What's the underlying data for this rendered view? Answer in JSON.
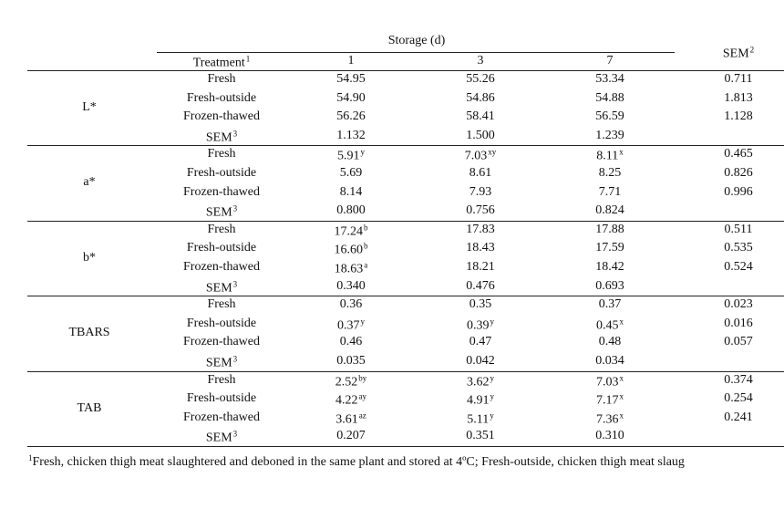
{
  "header": {
    "storage": "Storage (d)",
    "sem": {
      "text": "SEM",
      "sup": "2"
    },
    "treatment": {
      "text": "Treatment",
      "sup": "1"
    },
    "days": [
      "1",
      "3",
      "7"
    ]
  },
  "groups": [
    {
      "label": "L*",
      "rows": [
        [
          "Fresh",
          "54.95",
          "55.26",
          "53.34",
          "0.711"
        ],
        [
          "Fresh-outside",
          "54.90",
          "54.86",
          "54.88",
          "1.813"
        ],
        [
          "Frozen-thawed",
          "56.26",
          "58.41",
          "56.59",
          "1.128"
        ],
        [
          {
            "text": "SEM",
            "sup": "3"
          },
          "1.132",
          "1.500",
          "1.239"
        ]
      ]
    },
    {
      "label": "a*",
      "rows": [
        [
          "Fresh",
          {
            "text": "5.91",
            "sup": "y"
          },
          {
            "text": "7.03",
            "sup": "xy"
          },
          {
            "text": "8.11",
            "sup": "x"
          },
          "0.465"
        ],
        [
          "Fresh-outside",
          "5.69",
          "8.61",
          "8.25",
          "0.826"
        ],
        [
          "Frozen-thawed",
          "8.14",
          "7.93",
          "7.71",
          "0.996"
        ],
        [
          {
            "text": "SEM",
            "sup": "3"
          },
          "0.800",
          "0.756",
          "0.824"
        ]
      ]
    },
    {
      "label": "b*",
      "rows": [
        [
          "Fresh",
          {
            "text": "17.24",
            "sup": "b"
          },
          "17.83",
          "17.88",
          "0.511"
        ],
        [
          "Fresh-outside",
          {
            "text": "16.60",
            "sup": "b"
          },
          "18.43",
          "17.59",
          "0.535"
        ],
        [
          "Frozen-thawed",
          {
            "text": "18.63",
            "sup": "a"
          },
          "18.21",
          "18.42",
          "0.524"
        ],
        [
          {
            "text": "SEM",
            "sup": "3"
          },
          "0.340",
          "0.476",
          "0.693"
        ]
      ]
    },
    {
      "label": "TBARS",
      "rows": [
        [
          "Fresh",
          "0.36",
          "0.35",
          "0.37",
          "0.023"
        ],
        [
          "Fresh-outside",
          {
            "text": "0.37",
            "sup": "y"
          },
          {
            "text": "0.39",
            "sup": "y"
          },
          {
            "text": "0.45",
            "sup": "x"
          },
          "0.016"
        ],
        [
          "Frozen-thawed",
          "0.46",
          "0.47",
          "0.48",
          "0.057"
        ],
        [
          {
            "text": "SEM",
            "sup": "3"
          },
          "0.035",
          "0.042",
          "0.034"
        ]
      ]
    },
    {
      "label": "TAB",
      "rows": [
        [
          "Fresh",
          {
            "text": "2.52",
            "sup": "by"
          },
          {
            "text": "3.62",
            "sup": "y"
          },
          {
            "text": "7.03",
            "sup": "x"
          },
          "0.374"
        ],
        [
          "Fresh-outside",
          {
            "text": "4.22",
            "sup": "ay"
          },
          {
            "text": "4.91",
            "sup": "y"
          },
          {
            "text": "7.17",
            "sup": "x"
          },
          "0.254"
        ],
        [
          "Frozen-thawed",
          {
            "text": "3.61",
            "sup": "az"
          },
          {
            "text": "5.11",
            "sup": "y"
          },
          {
            "text": "7.36",
            "sup": "x"
          },
          "0.241"
        ],
        [
          {
            "text": "SEM",
            "sup": "3"
          },
          "0.207",
          "0.351",
          "0.310"
        ]
      ]
    }
  ],
  "footnote": {
    "sup": "1",
    "text": "Fresh, chicken thigh meat slaughtered and deboned in the same plant and stored at 4ºC; Fresh-outside, chicken thigh meat slaug"
  }
}
